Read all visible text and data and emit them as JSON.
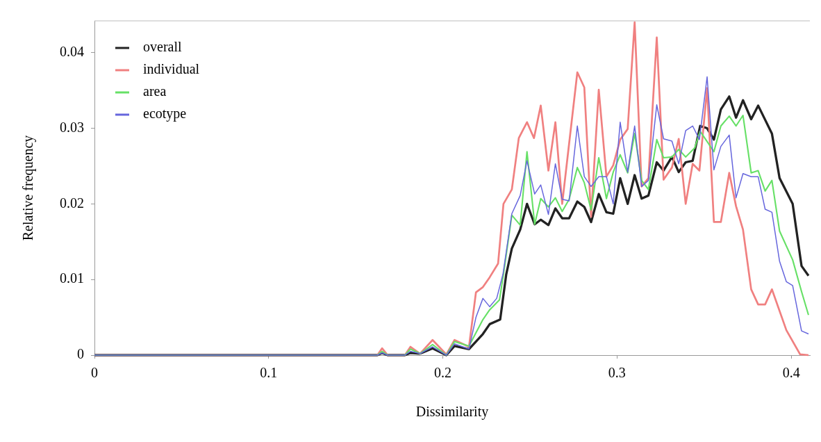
{
  "chart_data": {
    "type": "line",
    "xlabel": "Dissimilarity",
    "ylabel": "Relative frequency",
    "xlim": [
      0,
      0.4107
    ],
    "ylim": [
      0,
      0.0442
    ],
    "xticks": [
      0,
      0.1,
      0.2,
      0.3,
      0.4
    ],
    "yticks": [
      0,
      0.01,
      0.02,
      0.03,
      0.04
    ],
    "grid": false,
    "legend": "top left",
    "marker": "none",
    "line_style": "solid",
    "series": [
      {
        "name": "overall",
        "color": "#222222",
        "x": [
          0,
          0.1624,
          0.1651,
          0.1683,
          0.1782,
          0.1814,
          0.1869,
          0.1941,
          0.202,
          0.2067,
          0.215,
          0.223,
          0.2269,
          0.2329,
          0.2364,
          0.2396,
          0.2444,
          0.2483,
          0.2527,
          0.2562,
          0.2606,
          0.2646,
          0.2685,
          0.2725,
          0.2772,
          0.2812,
          0.2851,
          0.2895,
          0.2939,
          0.2978,
          0.3018,
          0.3061,
          0.3101,
          0.3141,
          0.318,
          0.3228,
          0.3267,
          0.3315,
          0.3354,
          0.3394,
          0.3434,
          0.3477,
          0.3517,
          0.3556,
          0.3596,
          0.3644,
          0.3683,
          0.3723,
          0.377,
          0.381,
          0.3889,
          0.3933,
          0.4008,
          0.4059,
          0.4099
        ],
        "values": [
          0,
          0,
          0.0003,
          0,
          0,
          0.0003,
          0.0002,
          0.0009,
          0,
          0.0012,
          0.0008,
          0.0028,
          0.0041,
          0.0047,
          0.0107,
          0.0141,
          0.0166,
          0.02,
          0.0173,
          0.0179,
          0.0172,
          0.0194,
          0.0181,
          0.0181,
          0.0203,
          0.0196,
          0.0176,
          0.0213,
          0.0189,
          0.0187,
          0.0234,
          0.02,
          0.0238,
          0.0207,
          0.0211,
          0.0255,
          0.0244,
          0.0262,
          0.0242,
          0.0255,
          0.0257,
          0.0303,
          0.03,
          0.0285,
          0.0325,
          0.0342,
          0.0314,
          0.0337,
          0.0312,
          0.033,
          0.0293,
          0.0234,
          0.02,
          0.0118,
          0.0105
        ]
      },
      {
        "name": "individual",
        "color": "#f08080",
        "x": [
          0,
          0.1624,
          0.1651,
          0.1683,
          0.1782,
          0.1814,
          0.1869,
          0.1941,
          0.202,
          0.2067,
          0.215,
          0.219,
          0.223,
          0.2269,
          0.2317,
          0.2348,
          0.2396,
          0.2436,
          0.2483,
          0.2523,
          0.2562,
          0.2606,
          0.2646,
          0.2685,
          0.2772,
          0.2812,
          0.2851,
          0.2895,
          0.2939,
          0.2978,
          0.3018,
          0.3061,
          0.3101,
          0.3141,
          0.318,
          0.3228,
          0.3267,
          0.3315,
          0.3354,
          0.3394,
          0.3434,
          0.3473,
          0.3517,
          0.3556,
          0.3596,
          0.3644,
          0.3683,
          0.3723,
          0.377,
          0.381,
          0.385,
          0.3889,
          0.3972,
          0.4051,
          0.4099
        ],
        "values": [
          0,
          0,
          0.0009,
          0,
          0,
          0.0011,
          0.0002,
          0.002,
          0.0001,
          0.002,
          0.0011,
          0.0083,
          0.009,
          0.0103,
          0.0121,
          0.02,
          0.0219,
          0.0287,
          0.0308,
          0.0287,
          0.033,
          0.0244,
          0.0308,
          0.02,
          0.0374,
          0.0354,
          0.0183,
          0.0351,
          0.0236,
          0.0251,
          0.0285,
          0.0299,
          0.044,
          0.0223,
          0.0234,
          0.042,
          0.0232,
          0.0248,
          0.0286,
          0.02,
          0.0253,
          0.0244,
          0.0353,
          0.0176,
          0.0176,
          0.0241,
          0.0197,
          0.0166,
          0.0087,
          0.0067,
          0.0067,
          0.0087,
          0.0033,
          0.0001,
          0
        ]
      },
      {
        "name": "area",
        "color": "#66e066",
        "x": [
          0,
          0.1624,
          0.1651,
          0.1683,
          0.1782,
          0.1814,
          0.1869,
          0.1941,
          0.202,
          0.2067,
          0.215,
          0.223,
          0.2269,
          0.2325,
          0.2348,
          0.2396,
          0.2444,
          0.2483,
          0.2527,
          0.2562,
          0.2606,
          0.2646,
          0.2685,
          0.2725,
          0.2772,
          0.2812,
          0.2851,
          0.2895,
          0.2939,
          0.2978,
          0.3018,
          0.3061,
          0.3101,
          0.3141,
          0.318,
          0.3228,
          0.3267,
          0.3315,
          0.3354,
          0.3394,
          0.3446,
          0.3477,
          0.3556,
          0.3596,
          0.3644,
          0.3683,
          0.3723,
          0.377,
          0.381,
          0.385,
          0.3889,
          0.3933,
          0.4008,
          0.4059,
          0.4099
        ],
        "values": [
          0,
          0,
          0.0005,
          0,
          0,
          0.0008,
          0.0002,
          0.0014,
          0,
          0.0018,
          0.0012,
          0.0047,
          0.006,
          0.0073,
          0.0107,
          0.0185,
          0.0172,
          0.0269,
          0.0173,
          0.0207,
          0.0196,
          0.0208,
          0.019,
          0.0206,
          0.0248,
          0.0228,
          0.0192,
          0.0261,
          0.0207,
          0.0242,
          0.0265,
          0.0241,
          0.0293,
          0.0231,
          0.0219,
          0.0285,
          0.0261,
          0.0262,
          0.0272,
          0.0262,
          0.0274,
          0.0296,
          0.0269,
          0.0303,
          0.0316,
          0.0303,
          0.0317,
          0.0241,
          0.0244,
          0.0217,
          0.0231,
          0.0164,
          0.0126,
          0.0084,
          0.0053
        ]
      },
      {
        "name": "ecotype",
        "color": "#6666dd",
        "x": [
          0,
          0.1624,
          0.1651,
          0.1683,
          0.1782,
          0.1814,
          0.1869,
          0.1941,
          0.202,
          0.2067,
          0.215,
          0.219,
          0.223,
          0.2269,
          0.2309,
          0.2345,
          0.2396,
          0.2444,
          0.2483,
          0.2527,
          0.2562,
          0.2606,
          0.2646,
          0.2685,
          0.2725,
          0.2772,
          0.2812,
          0.2851,
          0.2895,
          0.2939,
          0.2978,
          0.3018,
          0.3061,
          0.3101,
          0.3141,
          0.318,
          0.3228,
          0.3267,
          0.3315,
          0.3354,
          0.3394,
          0.3434,
          0.3473,
          0.3517,
          0.3556,
          0.3596,
          0.3644,
          0.3683,
          0.3723,
          0.377,
          0.381,
          0.385,
          0.3889,
          0.3933,
          0.3972,
          0.4008,
          0.4059,
          0.4099
        ],
        "values": [
          0,
          0,
          0.0003,
          0,
          0,
          0.0005,
          0.0002,
          0.0011,
          0,
          0.0015,
          0.0008,
          0.005,
          0.0075,
          0.0064,
          0.0075,
          0.0107,
          0.0187,
          0.0211,
          0.0257,
          0.0213,
          0.0225,
          0.0186,
          0.0253,
          0.0206,
          0.0204,
          0.0303,
          0.0236,
          0.0223,
          0.0236,
          0.0236,
          0.02,
          0.0308,
          0.0242,
          0.0303,
          0.0223,
          0.0231,
          0.0331,
          0.0286,
          0.0283,
          0.0253,
          0.0297,
          0.0303,
          0.0285,
          0.0368,
          0.0245,
          0.0276,
          0.0291,
          0.0208,
          0.024,
          0.0236,
          0.0236,
          0.0193,
          0.0189,
          0.0124,
          0.0097,
          0.0092,
          0.0032,
          0.0028
        ]
      }
    ]
  }
}
